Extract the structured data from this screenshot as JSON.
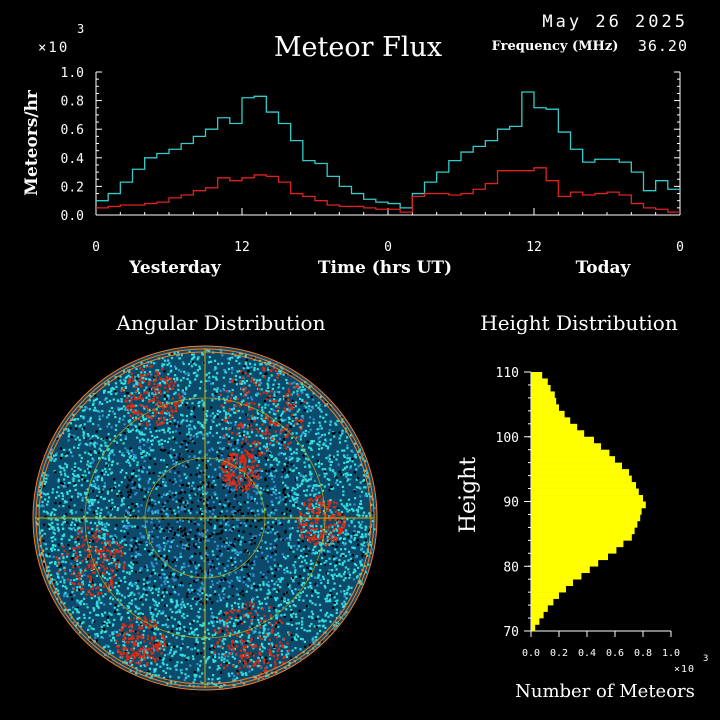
{
  "header": {
    "date": "May 26 2025",
    "title": "Meteor Flux",
    "frequency_label": "Frequency (MHz)",
    "frequency_value": "36.20"
  },
  "flux_chart": {
    "exponent_label": "×10",
    "exponent_power": "3",
    "ylabel": "Meteors/hr",
    "xlabel": "Time (hrs UT)",
    "day_labels": [
      "Yesterday",
      "Today"
    ]
  },
  "angular": {
    "title": "Angular Distribution"
  },
  "height_chart": {
    "title": "Height Distribution",
    "ylabel": "Height",
    "xlabel": "Number of Meteors",
    "exponent_label": "×10",
    "exponent_power": "3"
  },
  "colors": {
    "background": "#000000",
    "axis": "#ffffff",
    "series_total": "#33cccc",
    "series_underdense": "#dd2222",
    "histogram": "#ffff00",
    "angular_cyan": "#33e0e0",
    "angular_blue": "#2f8fd0",
    "angular_red": "#e02a10",
    "angular_grid": "#d0b000",
    "angular_rings": "#ff7a1a"
  },
  "chart_data": [
    {
      "type": "line",
      "title": "Meteor Flux",
      "xlabel": "Time (hrs UT)",
      "ylabel": "Meteors/hr",
      "units": "x10^3 meteors/hr",
      "x": [
        0,
        1,
        2,
        3,
        4,
        5,
        6,
        7,
        8,
        9,
        10,
        11,
        12,
        13,
        14,
        15,
        16,
        17,
        18,
        19,
        20,
        21,
        22,
        23,
        24,
        25,
        26,
        27,
        28,
        29,
        30,
        31,
        32,
        33,
        34,
        35,
        36,
        37,
        38,
        39,
        40,
        41,
        42,
        43,
        44,
        45,
        46,
        47
      ],
      "x_tick_labels": [
        "0",
        "12",
        "0",
        "12",
        "0"
      ],
      "ylim": [
        0,
        1.0
      ],
      "y_ticks": [
        "0.0",
        "0.2",
        "0.4",
        "0.6",
        "0.8",
        "1.0"
      ],
      "series": [
        {
          "values": [
            0.1,
            0.15,
            0.23,
            0.32,
            0.4,
            0.43,
            0.46,
            0.5,
            0.55,
            0.6,
            0.68,
            0.64,
            0.82,
            0.83,
            0.72,
            0.64,
            0.52,
            0.38,
            0.36,
            0.27,
            0.2,
            0.15,
            0.11,
            0.09,
            0.08,
            0.05,
            0.15,
            0.23,
            0.3,
            0.38,
            0.44,
            0.48,
            0.52,
            0.6,
            0.62,
            0.86,
            0.75,
            0.74,
            0.58,
            0.46,
            0.37,
            0.39,
            0.39,
            0.37,
            0.3,
            0.17,
            0.24,
            0.18
          ]
        },
        {
          "values": [
            0.05,
            0.06,
            0.07,
            0.07,
            0.08,
            0.09,
            0.12,
            0.14,
            0.17,
            0.19,
            0.26,
            0.24,
            0.26,
            0.28,
            0.27,
            0.23,
            0.15,
            0.13,
            0.1,
            0.07,
            0.06,
            0.06,
            0.05,
            0.04,
            0.04,
            0.02,
            0.13,
            0.15,
            0.15,
            0.14,
            0.15,
            0.18,
            0.22,
            0.31,
            0.31,
            0.31,
            0.33,
            0.24,
            0.13,
            0.16,
            0.14,
            0.15,
            0.16,
            0.14,
            0.08,
            0.05,
            0.04,
            0.02
          ]
        }
      ]
    },
    {
      "type": "bar",
      "orientation": "horizontal",
      "title": "Height Distribution",
      "xlabel": "Number of Meteors",
      "ylabel": "Height",
      "units": "x10^3 meteors",
      "xlim": [
        0,
        1.0
      ],
      "x_ticks": [
        "0.0",
        "0.2",
        "0.4",
        "0.6",
        "0.8",
        "1.0"
      ],
      "ylim": [
        70,
        110
      ],
      "y_ticks": [
        "70",
        "80",
        "90",
        "100",
        "110"
      ],
      "categories": [
        70,
        71,
        72,
        73,
        74,
        75,
        76,
        77,
        78,
        79,
        80,
        81,
        82,
        83,
        84,
        85,
        86,
        87,
        88,
        89,
        90,
        91,
        92,
        93,
        94,
        95,
        96,
        97,
        98,
        99,
        100,
        101,
        102,
        103,
        104,
        105,
        106,
        107,
        108,
        109
      ],
      "values": [
        0.03,
        0.06,
        0.09,
        0.12,
        0.16,
        0.2,
        0.25,
        0.3,
        0.36,
        0.42,
        0.48,
        0.55,
        0.61,
        0.66,
        0.72,
        0.74,
        0.76,
        0.78,
        0.79,
        0.82,
        0.8,
        0.77,
        0.75,
        0.72,
        0.7,
        0.65,
        0.6,
        0.56,
        0.5,
        0.45,
        0.38,
        0.33,
        0.28,
        0.24,
        0.2,
        0.18,
        0.17,
        0.14,
        0.12,
        0.08
      ]
    }
  ]
}
